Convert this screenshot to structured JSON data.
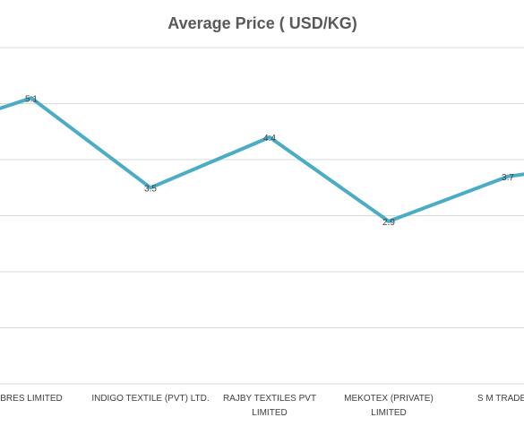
{
  "chart_data": {
    "type": "line",
    "title": "Average Price ( USD/KG)",
    "xlabel": "",
    "ylabel": "",
    "categories": [
      "…BRES LIMITED",
      "INDIGO TEXTILE (PVT) LTD.",
      "RAJBY TEXTILES PVT LIMITED",
      "MEKOTEX (PRIVATE) LIMITED",
      "S M TRADERS"
    ],
    "category_label_lines": [
      [
        "BRES LIMITED"
      ],
      [
        "INDIGO TEXTILE (PVT) LTD."
      ],
      [
        "RAJBY TEXTILES PVT",
        "LIMITED"
      ],
      [
        "MEKOTEX (PRIVATE)",
        "LIMITED"
      ],
      [
        "S M TRADERS"
      ]
    ],
    "series": [
      {
        "values": [
          5.1,
          3.5,
          4.4,
          2.9,
          3.7
        ]
      }
    ],
    "data_labels": [
      "5.1",
      "3.5",
      "4.4",
      "2.9",
      "3.7"
    ],
    "partial_point_at_left_edge": 4.4,
    "partial_point_at_right_edge": 4.0,
    "ylim": [
      0,
      6
    ],
    "grid": true,
    "legend": "none",
    "line_color": "#4BACC6"
  }
}
